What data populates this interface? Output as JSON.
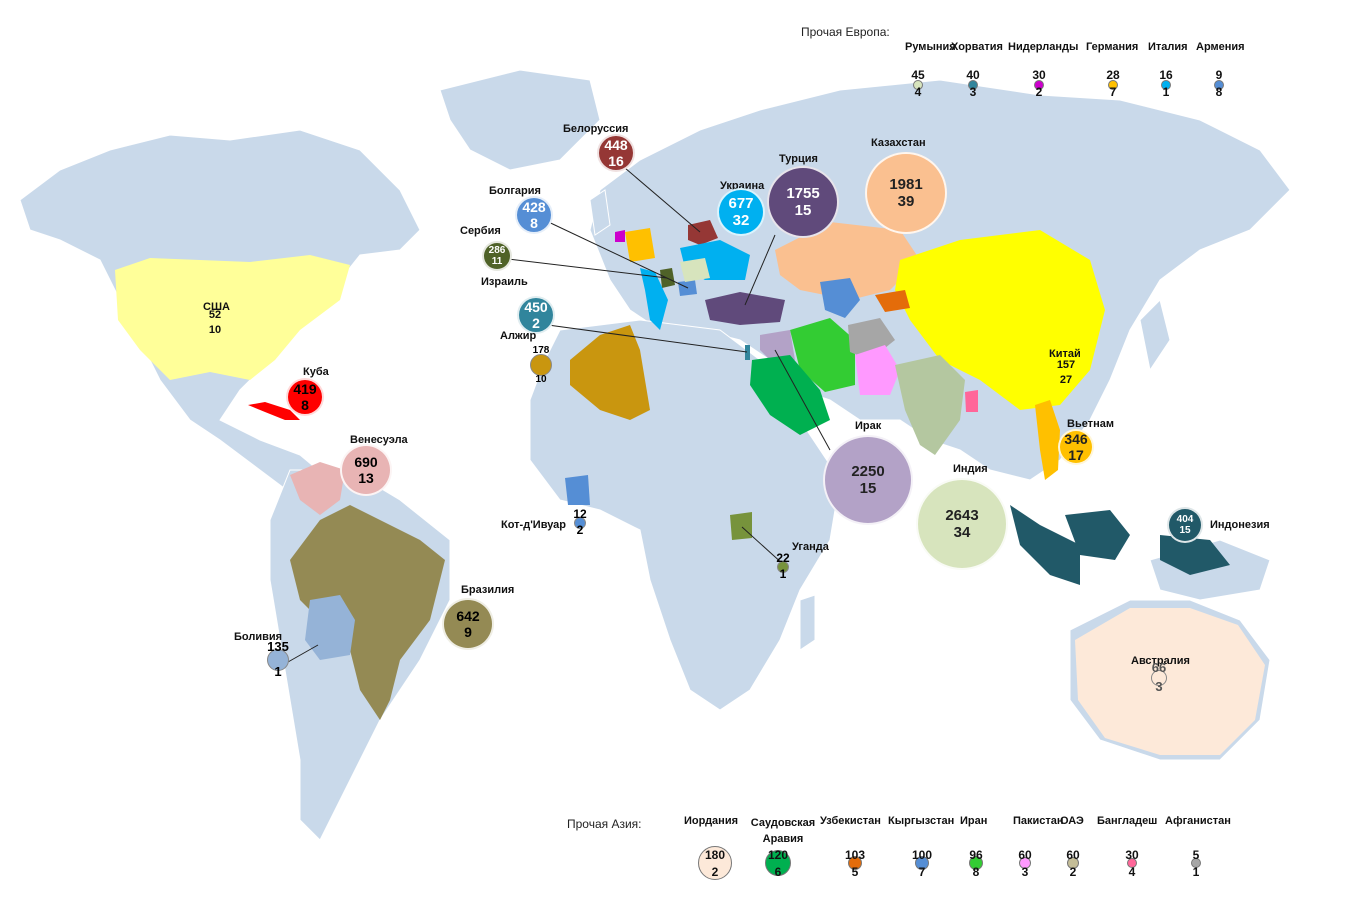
{
  "headers": {
    "europe_other": "Прочая Европа:",
    "asia_other": "Прочая Азия:"
  },
  "colors": {
    "land": "#c9d9ea",
    "ocean": "#ffffff"
  },
  "countries": [
    {
      "key": "usa",
      "name": "США",
      "a": "52",
      "b": "10",
      "color": "#ffff99"
    },
    {
      "key": "cuba",
      "name": "Куба",
      "a": "419",
      "b": "8",
      "color": "#ff0000"
    },
    {
      "key": "venezuela",
      "name": "Венесуэла",
      "a": "690",
      "b": "13",
      "color": "#e8b4b4"
    },
    {
      "key": "brazil",
      "name": "Бразилия",
      "a": "642",
      "b": "9",
      "color": "#948a54"
    },
    {
      "key": "bolivia",
      "name": "Боливия",
      "a": "135",
      "b": "1",
      "color": "#95b3d7"
    },
    {
      "key": "belarus",
      "name": "Белоруссия",
      "a": "448",
      "b": "16",
      "color": "#953735"
    },
    {
      "key": "bulgaria",
      "name": "Болгария",
      "a": "428",
      "b": "8",
      "color": "#558ed5"
    },
    {
      "key": "serbia",
      "name": "Сербия",
      "a": "286",
      "b": "11",
      "color": "#4f6228"
    },
    {
      "key": "israel",
      "name": "Израиль",
      "a": "450",
      "b": "2",
      "color": "#31859c"
    },
    {
      "key": "algeria",
      "name": "Алжир",
      "a": "178",
      "b": "10",
      "color": "#c9960f"
    },
    {
      "key": "cote",
      "name": "Кот-д'Ивуар",
      "a": "12",
      "b": "2",
      "color": "#558ed5"
    },
    {
      "key": "uganda",
      "name": "Уганда",
      "a": "22",
      "b": "1",
      "color": "#77933c"
    },
    {
      "key": "ukraine",
      "name": "Украина",
      "a": "677",
      "b": "32",
      "color": "#00b0f0"
    },
    {
      "key": "turkey",
      "name": "Турция",
      "a": "1755",
      "b": "15",
      "color": "#604a7b"
    },
    {
      "key": "kazakhstan",
      "name": "Казахстан",
      "a": "1981",
      "b": "39",
      "color": "#fac090"
    },
    {
      "key": "china",
      "name": "Китай",
      "a": "157",
      "b": "27",
      "color": "#ffff00"
    },
    {
      "key": "iraq",
      "name": "Ирак",
      "a": "2250",
      "b": "15",
      "color": "#b3a2c7"
    },
    {
      "key": "india",
      "name": "Индия",
      "a": "2643",
      "b": "34",
      "color": "#d7e4bd"
    },
    {
      "key": "vietnam",
      "name": "Вьетнам",
      "a": "346",
      "b": "17",
      "color": "#ffc000"
    },
    {
      "key": "indonesia",
      "name": "Индонезия",
      "a": "404",
      "b": "15",
      "color": "#215968"
    },
    {
      "key": "australia",
      "name": "Австралия",
      "a": "66",
      "b": "3",
      "color": "#fde9d9"
    }
  ],
  "europe_other": [
    {
      "name": "Румыния",
      "a": "45",
      "b": "4",
      "color": "#d7e4bd"
    },
    {
      "name": "Хорватия",
      "a": "40",
      "b": "3",
      "color": "#31859c"
    },
    {
      "name": "Нидерланды",
      "a": "30",
      "b": "2",
      "color": "#cc00cc"
    },
    {
      "name": "Германия",
      "a": "28",
      "b": "7",
      "color": "#ffc000"
    },
    {
      "name": "Италия",
      "a": "16",
      "b": "1",
      "color": "#00b0f0"
    },
    {
      "name": "Армения",
      "a": "9",
      "b": "8",
      "color": "#558ed5"
    }
  ],
  "asia_other": [
    {
      "name": "Иордания",
      "a": "180",
      "b": "2",
      "color": "#fde9d9"
    },
    {
      "name": "Саудовская Аравия",
      "a": "120",
      "b": "6",
      "color": "#00b050"
    },
    {
      "name": "Узбекистан",
      "a": "103",
      "b": "5",
      "color": "#e46c0a"
    },
    {
      "name": "Кыргызстан",
      "a": "100",
      "b": "7",
      "color": "#558ed5"
    },
    {
      "name": "Иран",
      "a": "96",
      "b": "8",
      "color": "#33cc33"
    },
    {
      "name": "Пакистан",
      "a": "60",
      "b": "3",
      "color": "#ff99ff"
    },
    {
      "name": "ОАЭ",
      "a": "60",
      "b": "2",
      "color": "#c4bd97"
    },
    {
      "name": "Бангладеш",
      "a": "30",
      "b": "4",
      "color": "#ff6699"
    },
    {
      "name": "Афганистан",
      "a": "5",
      "b": "1",
      "color": "#a6a6a6"
    }
  ]
}
